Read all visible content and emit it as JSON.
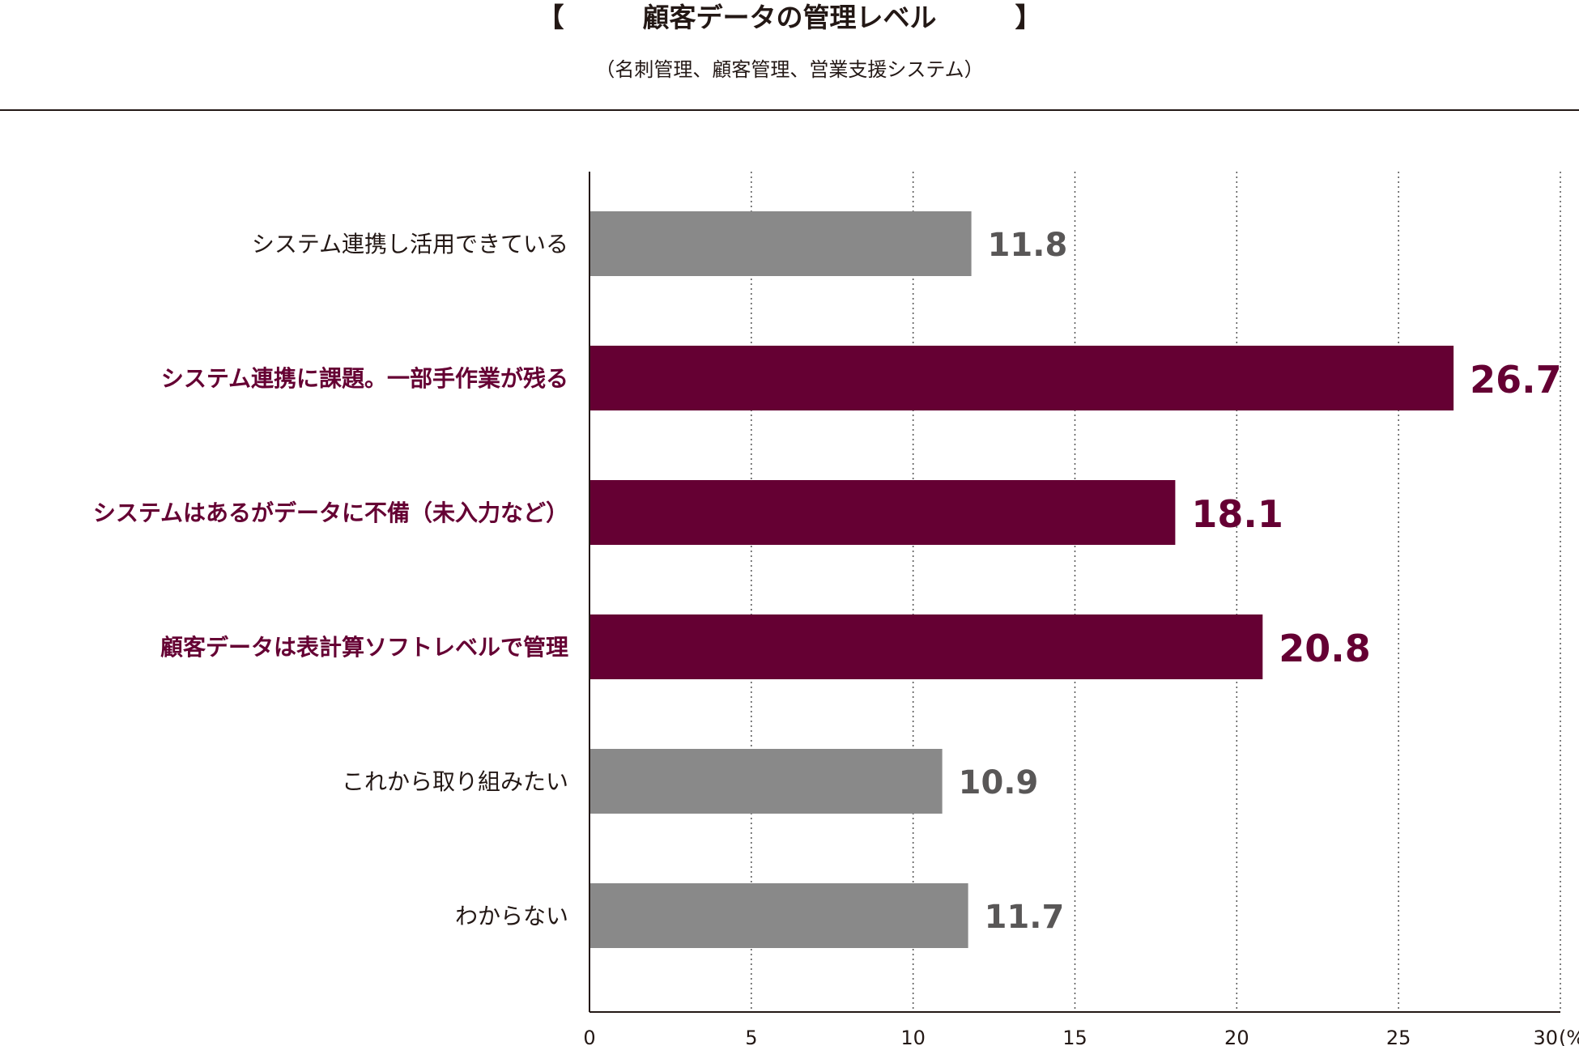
{
  "chart_data": {
    "type": "bar",
    "orientation": "horizontal",
    "title": "顧客データの管理レベル",
    "title_bracket_open": "【",
    "title_bracket_close": "】",
    "subtitle": "（名刺管理、顧客管理、営業支援システム）",
    "categories": [
      "システム連携し活用できている",
      "システム連携に課題。一部手作業が残る",
      "システムはあるがデータに不備（未入力など）",
      "顧客データは表計算ソフトレベルで管理",
      "これから取り組みたい",
      "わからない"
    ],
    "values": [
      11.8,
      26.7,
      18.1,
      20.8,
      10.9,
      11.7
    ],
    "value_labels": [
      "11.8",
      "26.7",
      "18.1",
      "20.8",
      "10.9",
      "11.7"
    ],
    "highlighted": [
      false,
      true,
      true,
      true,
      false,
      false
    ],
    "xlim": [
      0,
      30
    ],
    "ticks": [
      0,
      5,
      10,
      15,
      20,
      25,
      30
    ],
    "tick_labels": [
      "0",
      "5",
      "10",
      "15",
      "20",
      "25",
      "30"
    ],
    "unit_label": "(%)",
    "grid": "vertical dotted",
    "colors": {
      "highlight": "#650033",
      "normal": "#898989",
      "normal_value": "#595757",
      "text": "#231815",
      "grid": "#555555"
    }
  }
}
